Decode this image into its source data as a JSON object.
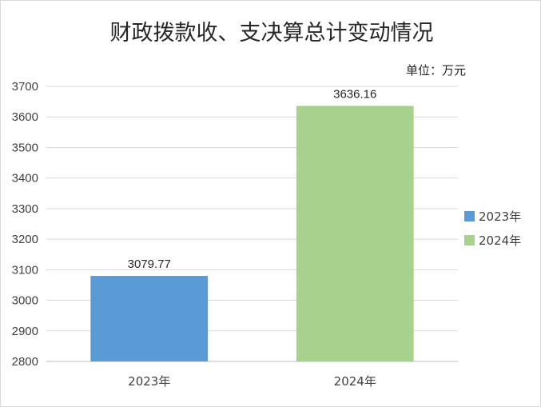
{
  "chart_data": {
    "type": "bar",
    "title": "财政拨款收、支决算总计变动情况",
    "unit_label": "单位：万元",
    "categories": [
      "2023年",
      "2024年"
    ],
    "values": [
      3079.77,
      3636.16
    ],
    "value_labels": [
      "3079.77",
      "3636.16"
    ],
    "ylim": [
      2800,
      3700
    ],
    "yticks": [
      "2800",
      "2900",
      "3000",
      "3100",
      "3200",
      "3300",
      "3400",
      "3500",
      "3600",
      "3700"
    ],
    "grid": true,
    "legend_position": "right",
    "legend": [
      {
        "label": "2023年",
        "color": "#5b9bd5"
      },
      {
        "label": "2024年",
        "color": "#a9d18e"
      }
    ],
    "colors": [
      "#5b9bd5",
      "#a9d18e"
    ]
  }
}
